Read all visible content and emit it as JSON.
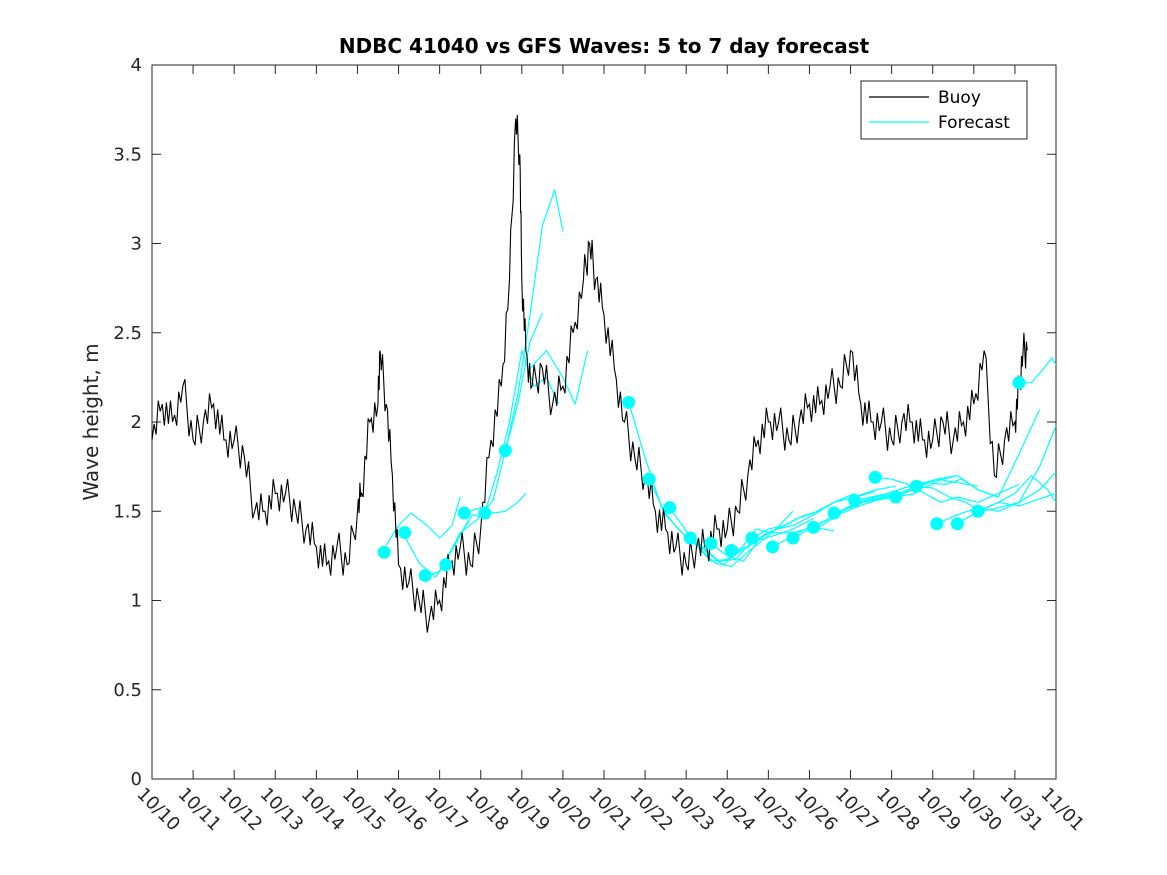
{
  "chart_data": {
    "type": "line",
    "title": "NDBC 41040 vs GFS Waves: 5 to 7 day forecast",
    "ylabel": "Wave height, m",
    "xlabel": "",
    "x_unit": "days since 10/10 00:00",
    "xlim": [
      0,
      22
    ],
    "ylim": [
      0,
      4
    ],
    "yticks": [
      0,
      0.5,
      1,
      1.5,
      2,
      2.5,
      3,
      3.5,
      4
    ],
    "ytick_labels": [
      "0",
      "0.5",
      "1",
      "1.5",
      "2",
      "2.5",
      "3",
      "3.5",
      "4"
    ],
    "xticks": [
      0,
      1,
      2,
      3,
      4,
      5,
      6,
      7,
      8,
      9,
      10,
      11,
      12,
      13,
      14,
      15,
      16,
      17,
      18,
      19,
      20,
      21,
      22
    ],
    "xtick_labels": [
      "10/10",
      "10/11",
      "10/12",
      "10/13",
      "10/14",
      "10/15",
      "10/16",
      "10/17",
      "10/18",
      "10/19",
      "10/20",
      "10/21",
      "10/22",
      "10/23",
      "10/24",
      "10/25",
      "10/26",
      "10/27",
      "10/28",
      "10/29",
      "10/30",
      "10/31",
      "11/01"
    ],
    "legend": {
      "position": "top-right",
      "entries": [
        "Buoy",
        "Forecast"
      ]
    },
    "colors": {
      "buoy": "#000000",
      "forecast": "#00ffff"
    },
    "buoy": {
      "name": "Buoy",
      "x": [
        0,
        0.25,
        0.5,
        0.75,
        1.0,
        1.25,
        1.5,
        1.75,
        2.0,
        2.25,
        2.5,
        2.75,
        3.0,
        3.25,
        3.5,
        3.75,
        4.0,
        4.25,
        4.5,
        4.75,
        5.0,
        5.1,
        5.3,
        5.5,
        5.55,
        5.7,
        5.85,
        6.0,
        6.25,
        6.5,
        6.75,
        7.0,
        7.25,
        7.5,
        7.75,
        8.0,
        8.25,
        8.5,
        8.7,
        8.85,
        8.95,
        9.0,
        9.1,
        9.25,
        9.5,
        9.75,
        10.0,
        10.25,
        10.5,
        10.65,
        10.8,
        11.0,
        11.25,
        11.5,
        11.75,
        12.0,
        12.25,
        12.5,
        12.75,
        13.0,
        13.25,
        13.5,
        13.75,
        14.0,
        14.25,
        14.5,
        14.75,
        15.0,
        15.25,
        15.5,
        15.75,
        16.0,
        16.25,
        16.5,
        16.75,
        17.0,
        17.25,
        17.5,
        17.75,
        18.0,
        18.25,
        18.5,
        18.75,
        19.0,
        19.25,
        19.5,
        19.75,
        20.0,
        20.25,
        20.5,
        20.75,
        21.0,
        21.1,
        21.2,
        21.3
      ],
      "values": [
        1.9,
        2.1,
        2.0,
        2.2,
        1.9,
        2.0,
        2.1,
        1.9,
        1.9,
        1.8,
        1.5,
        1.5,
        1.6,
        1.6,
        1.5,
        1.4,
        1.3,
        1.2,
        1.3,
        1.2,
        1.5,
        1.6,
        2.0,
        2.1,
        2.4,
        2.1,
        1.7,
        1.2,
        1.1,
        1.0,
        0.9,
        1.0,
        1.2,
        1.3,
        1.2,
        1.4,
        1.9,
        2.2,
        2.8,
        3.7,
        3.5,
        2.8,
        2.4,
        2.2,
        2.3,
        2.1,
        2.2,
        2.5,
        2.8,
        3.0,
        2.8,
        2.6,
        2.3,
        2.0,
        1.8,
        1.7,
        1.5,
        1.4,
        1.3,
        1.2,
        1.3,
        1.3,
        1.4,
        1.4,
        1.5,
        1.7,
        1.9,
        2.0,
        2.0,
        1.9,
        2.0,
        2.1,
        2.1,
        2.2,
        2.2,
        2.4,
        2.1,
        2.0,
        2.0,
        1.9,
        2.0,
        2.0,
        1.9,
        1.9,
        2.0,
        1.9,
        2.0,
        2.1,
        2.4,
        1.7,
        1.9,
        2.0,
        2.2,
        2.4,
        2.4
      ]
    },
    "forecast_series": [
      {
        "x": [
          5.7,
          6.0,
          6.3,
          6.7,
          7.0,
          7.3,
          7.5
        ],
        "values": [
          1.31,
          1.42,
          1.49,
          1.42,
          1.35,
          1.42,
          1.58
        ]
      },
      {
        "x": [
          6.1,
          6.5,
          6.9,
          7.3,
          7.7
        ],
        "values": [
          1.38,
          1.21,
          1.13,
          1.28,
          1.45
        ]
      },
      {
        "x": [
          6.6,
          7.0,
          7.4,
          7.8,
          8.2
        ],
        "values": [
          1.14,
          1.16,
          1.33,
          1.48,
          1.46
        ]
      },
      {
        "x": [
          7.1,
          7.5,
          7.9,
          8.3,
          8.6,
          8.9,
          9.2,
          9.5
        ],
        "values": [
          1.2,
          1.38,
          1.45,
          1.56,
          1.84,
          2.1,
          2.45,
          2.61
        ]
      },
      {
        "x": [
          7.6,
          8.0,
          8.3,
          8.6,
          8.9,
          9.1
        ],
        "values": [
          1.49,
          1.52,
          1.49,
          1.5,
          1.55,
          1.6
        ]
      },
      {
        "x": [
          8.1,
          8.4,
          8.7,
          9.0,
          9.3,
          9.6,
          9.9
        ],
        "values": [
          1.49,
          1.72,
          2.0,
          2.4,
          2.2,
          2.25,
          2.1
        ]
      },
      {
        "x": [
          8.6,
          8.9,
          9.2,
          9.5,
          9.8,
          10.0
        ],
        "values": [
          1.84,
          2.15,
          2.6,
          3.1,
          3.3,
          3.07
        ]
      },
      {
        "x": [
          9.2,
          9.6,
          10.0,
          10.3,
          10.6
        ],
        "values": [
          2.3,
          2.4,
          2.25,
          2.1,
          2.4
        ]
      },
      {
        "x": [
          11.6,
          12.0,
          12.4,
          12.8,
          13.2,
          13.6,
          14.0,
          14.5,
          15.0
        ],
        "values": [
          2.11,
          1.8,
          1.52,
          1.4,
          1.32,
          1.22,
          1.23,
          1.3,
          1.38
        ]
      },
      {
        "x": [
          12.1,
          12.5,
          12.9,
          13.3,
          13.7,
          14.1,
          14.6,
          15.1,
          15.6
        ],
        "values": [
          1.68,
          1.48,
          1.38,
          1.3,
          1.21,
          1.19,
          1.29,
          1.38,
          1.5
        ]
      },
      {
        "x": [
          12.6,
          13.0,
          13.4,
          13.8,
          14.2,
          14.6,
          15.1,
          15.6,
          16.1
        ],
        "values": [
          1.52,
          1.39,
          1.3,
          1.22,
          1.23,
          1.33,
          1.36,
          1.4,
          1.46
        ]
      },
      {
        "x": [
          13.1,
          13.5,
          13.9,
          14.3,
          14.7,
          15.1,
          15.6,
          16.1,
          16.6
        ],
        "values": [
          1.35,
          1.27,
          1.2,
          1.28,
          1.4,
          1.38,
          1.38,
          1.41,
          1.39
        ]
      },
      {
        "x": [
          13.6,
          14.0,
          14.4,
          14.8,
          15.2,
          15.6,
          16.1,
          16.6,
          17.1
        ],
        "values": [
          1.32,
          1.25,
          1.22,
          1.35,
          1.4,
          1.42,
          1.48,
          1.55,
          1.6
        ]
      },
      {
        "x": [
          14.1,
          14.5,
          14.9,
          15.3,
          15.7,
          16.1,
          16.6,
          17.1,
          17.6
        ],
        "values": [
          1.28,
          1.3,
          1.37,
          1.41,
          1.46,
          1.49,
          1.55,
          1.58,
          1.61
        ]
      },
      {
        "x": [
          14.6,
          15.0,
          15.4,
          15.8,
          16.2,
          16.6,
          17.1,
          17.6,
          18.1
        ],
        "values": [
          1.35,
          1.4,
          1.42,
          1.47,
          1.5,
          1.55,
          1.58,
          1.62,
          1.64
        ]
      },
      {
        "x": [
          15.1,
          15.5,
          15.9,
          16.3,
          16.7,
          17.1,
          17.6,
          18.1,
          18.6
        ],
        "values": [
          1.3,
          1.35,
          1.4,
          1.42,
          1.48,
          1.52,
          1.56,
          1.58,
          1.6
        ]
      },
      {
        "x": [
          15.6,
          16.0,
          16.4,
          16.8,
          17.2,
          17.6,
          18.1,
          18.6,
          19.1
        ],
        "values": [
          1.35,
          1.4,
          1.45,
          1.5,
          1.55,
          1.58,
          1.6,
          1.62,
          1.66
        ]
      },
      {
        "x": [
          16.1,
          16.5,
          16.9,
          17.3,
          17.7,
          18.1,
          18.6,
          19.1,
          19.6
        ],
        "values": [
          1.41,
          1.46,
          1.52,
          1.55,
          1.57,
          1.59,
          1.64,
          1.68,
          1.7
        ]
      },
      {
        "x": [
          16.6,
          17.0,
          17.4,
          17.8,
          18.2,
          18.6,
          19.1,
          19.6,
          20.1
        ],
        "values": [
          1.49,
          1.52,
          1.56,
          1.58,
          1.6,
          1.64,
          1.68,
          1.66,
          1.64
        ]
      },
      {
        "x": [
          17.1,
          17.5,
          17.9,
          18.3,
          18.7,
          19.1,
          19.6,
          20.1,
          20.6
        ],
        "values": [
          1.56,
          1.58,
          1.6,
          1.63,
          1.66,
          1.67,
          1.7,
          1.62,
          1.58
        ]
      },
      {
        "x": [
          17.6,
          18.0,
          18.4,
          18.8,
          19.2,
          19.6,
          20.1,
          20.6,
          21.1
        ],
        "values": [
          1.69,
          1.68,
          1.65,
          1.6,
          1.55,
          1.58,
          1.55,
          1.6,
          1.65
        ]
      },
      {
        "x": [
          18.1,
          18.5,
          18.9,
          19.3,
          19.7,
          20.1,
          20.6,
          21.1,
          21.6
        ],
        "values": [
          1.58,
          1.62,
          1.66,
          1.65,
          1.68,
          1.62,
          1.58,
          1.82,
          2.07
        ]
      },
      {
        "x": [
          18.6,
          19.0,
          19.4,
          19.8,
          20.2,
          20.6,
          21.1,
          21.6,
          22.0
        ],
        "values": [
          1.64,
          1.63,
          1.58,
          1.55,
          1.5,
          1.52,
          1.55,
          1.75,
          1.98
        ]
      },
      {
        "x": [
          19.1,
          19.6,
          20.1,
          20.6,
          21.1,
          21.6,
          22.0
        ],
        "values": [
          1.43,
          1.48,
          1.52,
          1.5,
          1.55,
          1.62,
          1.72
        ]
      },
      {
        "x": [
          19.6,
          20.1,
          20.6,
          21.1,
          21.6,
          22.0
        ],
        "values": [
          1.43,
          1.5,
          1.55,
          1.53,
          1.57,
          1.6
        ]
      },
      {
        "x": [
          20.1,
          20.6,
          21.0,
          21.4,
          21.8,
          22.0
        ],
        "values": [
          1.5,
          1.55,
          1.6,
          1.7,
          1.62,
          1.55
        ]
      },
      {
        "x": [
          21.1,
          21.4,
          21.7,
          21.9,
          22.0
        ],
        "values": [
          2.22,
          2.22,
          2.3,
          2.36,
          2.32
        ]
      }
    ],
    "forecast_markers": {
      "x": [
        5.65,
        6.15,
        6.65,
        7.15,
        7.6,
        8.1,
        8.6,
        11.6,
        12.1,
        12.6,
        13.1,
        13.6,
        14.1,
        14.6,
        15.1,
        15.6,
        16.1,
        16.6,
        17.1,
        17.6,
        18.1,
        18.6,
        19.1,
        19.6,
        20.1,
        21.1
      ],
      "values": [
        1.27,
        1.38,
        1.14,
        1.2,
        1.49,
        1.49,
        1.84,
        2.11,
        1.68,
        1.52,
        1.35,
        1.32,
        1.28,
        1.35,
        1.3,
        1.35,
        1.41,
        1.49,
        1.56,
        1.69,
        1.58,
        1.64,
        1.43,
        1.43,
        1.5,
        2.22
      ]
    }
  }
}
